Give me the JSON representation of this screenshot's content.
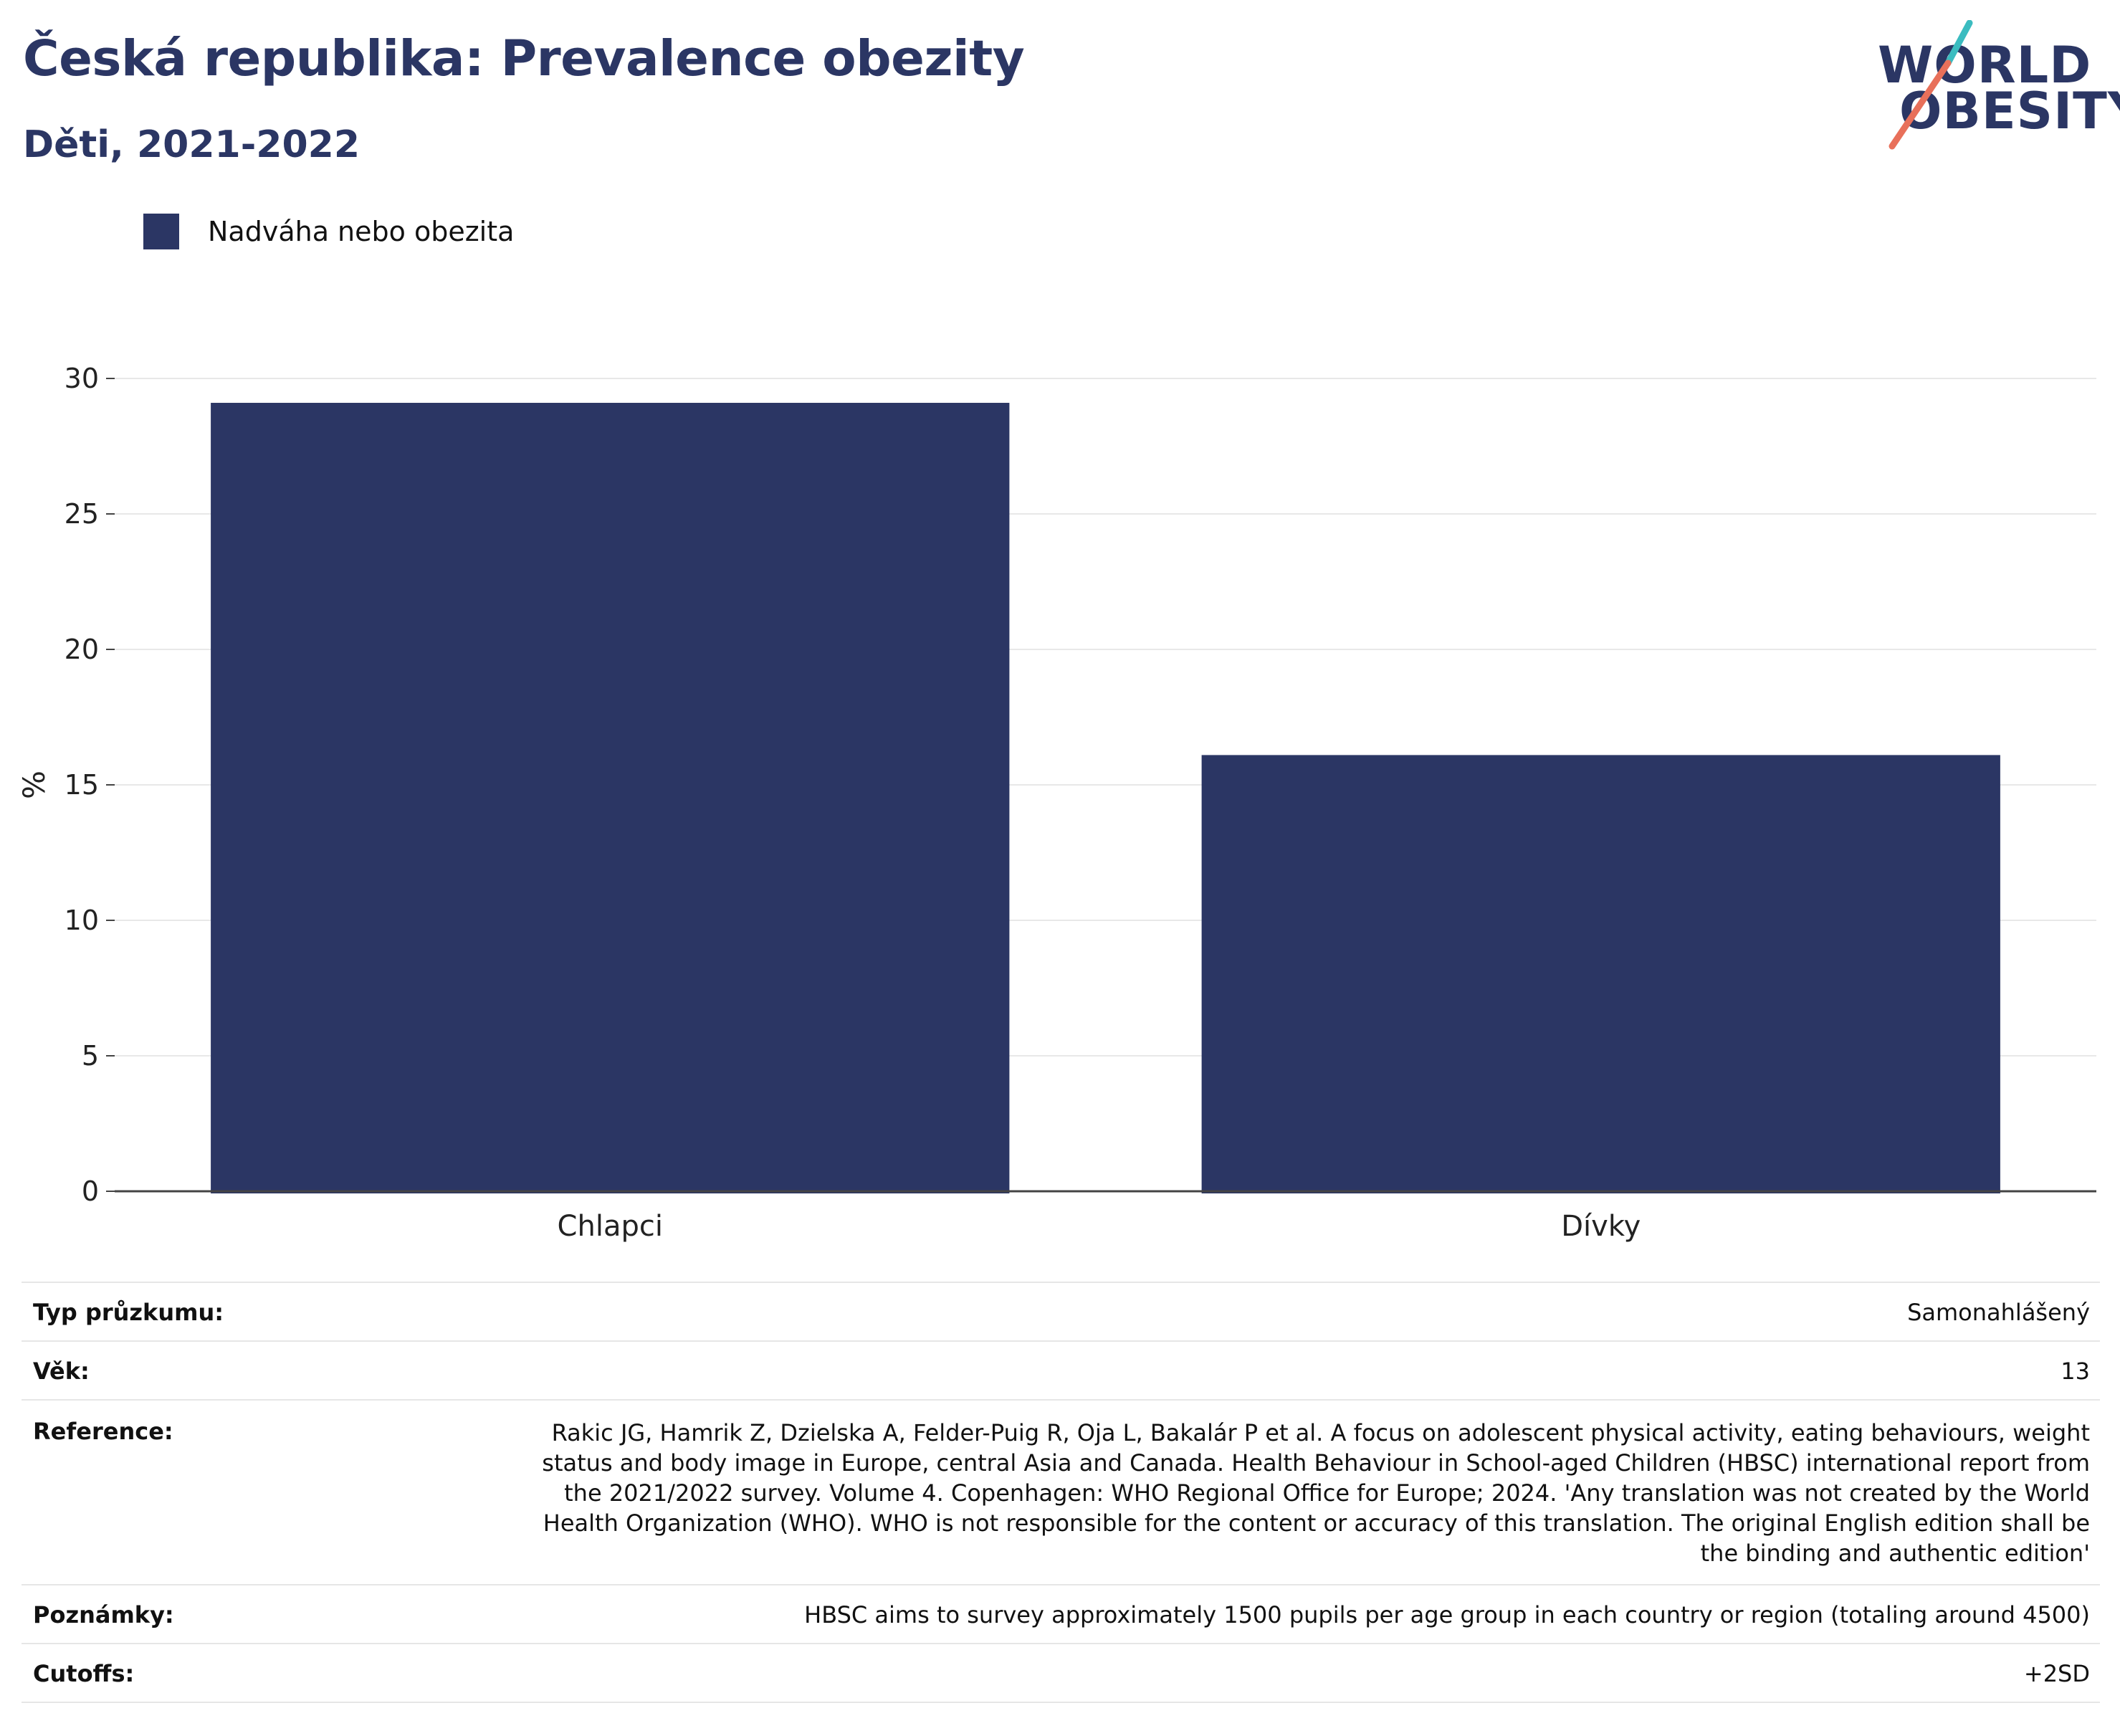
{
  "header": {
    "title": "Česká republika: Prevalence obezity",
    "subtitle": "Děti, 2021-2022"
  },
  "logo": {
    "line1": "WORLD",
    "line2": "OBESITY",
    "colors": {
      "text": "#2b3664",
      "slash_top": "#3bbcc0",
      "slash_bottom": "#e8705a"
    }
  },
  "legend": {
    "items": [
      {
        "label": "Nadváha nebo obezita",
        "color": "#2b3664"
      }
    ]
  },
  "chart_data": {
    "type": "bar",
    "categories": [
      "Chlapci",
      "Dívky"
    ],
    "series": [
      {
        "name": "Nadváha nebo obezita",
        "values": [
          29.1,
          16.1
        ],
        "color": "#2b3664"
      }
    ],
    "title": "Česká republika: Prevalence obezity",
    "subtitle": "Děti, 2021-2022",
    "xlabel": "",
    "ylabel": "%",
    "ylim": [
      0,
      30
    ],
    "yticks": [
      0,
      5,
      10,
      15,
      20,
      25,
      30
    ],
    "grid": true,
    "legend_position": "top-left"
  },
  "info": {
    "rows": [
      {
        "key": "Typ průzkumu:",
        "value": "Samonahlášený"
      },
      {
        "key": "Věk:",
        "value": "13"
      },
      {
        "key": "Reference:",
        "value": "Rakic JG, Hamrik Z, Dzielska A, Felder-Puig R, Oja L, Bakalár P et al. A focus on adolescent physical activity, eating behaviours, weight status and body image in Europe, central Asia and Canada. Health Behaviour in School-aged Children (HBSC) international report from the 2021/2022 survey. Volume 4. Copenhagen: WHO Regional Office for Europe; 2024. 'Any translation was not created by the World Health Organization (WHO). WHO is not responsible for the content or accuracy of this translation. The original English edition shall be the binding and authentic edition'"
      },
      {
        "key": "Poznámky:",
        "value": "HBSC aims to survey approximately 1500 pupils per age group in each country or region (totaling around 4500)"
      },
      {
        "key": "Cutoffs:",
        "value": "+2SD"
      }
    ]
  }
}
